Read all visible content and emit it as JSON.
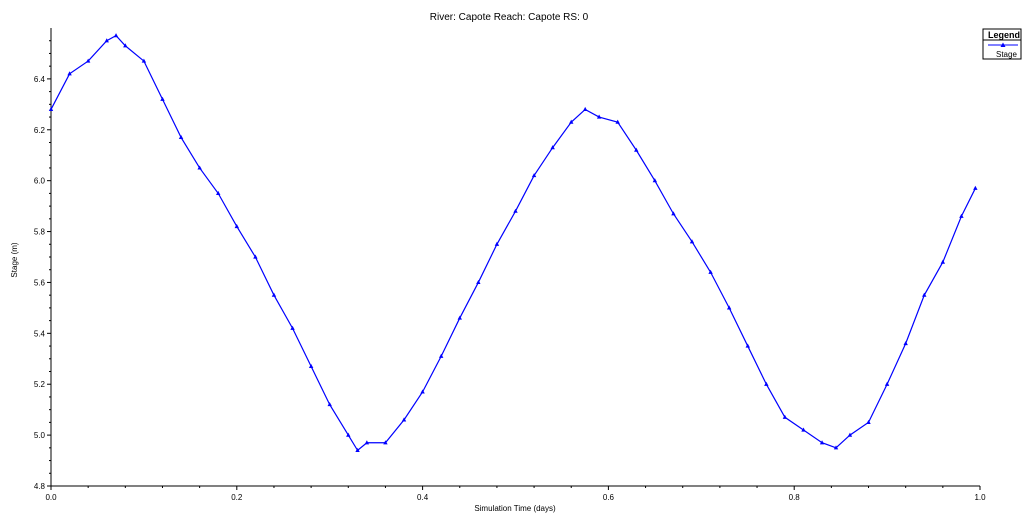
{
  "chart_data": {
    "type": "line",
    "title": "River: Capote  Reach: Capote  RS: 0",
    "xlabel": "Simulation Time (days)",
    "ylabel": "Stage  (m)",
    "xlim": [
      0,
      1.0
    ],
    "ylim": [
      4.8,
      6.6
    ],
    "xticks": [
      0.0,
      0.2,
      0.4,
      0.6,
      0.8,
      1.0
    ],
    "xtick_labels": [
      "0.0",
      "0.2",
      "0.4",
      "0.6",
      "0.8",
      "1.0"
    ],
    "yticks": [
      4.8,
      5.0,
      5.2,
      5.4,
      5.6,
      5.8,
      6.0,
      6.2,
      6.4
    ],
    "ytick_labels": [
      "4.8",
      "5.0",
      "5.2",
      "5.4",
      "5.6",
      "5.8",
      "6.0",
      "6.2",
      "6.4"
    ],
    "grid": false,
    "legend": {
      "title": "Legend",
      "placement": "top-right",
      "entries": [
        "Stage"
      ]
    },
    "series": [
      {
        "name": "Stage",
        "color": "#0000ff",
        "marker": "triangle",
        "x": [
          0.0,
          0.02,
          0.04,
          0.06,
          0.07,
          0.08,
          0.1,
          0.12,
          0.14,
          0.16,
          0.18,
          0.2,
          0.22,
          0.24,
          0.26,
          0.28,
          0.3,
          0.32,
          0.33,
          0.34,
          0.36,
          0.38,
          0.4,
          0.42,
          0.44,
          0.46,
          0.48,
          0.5,
          0.52,
          0.54,
          0.56,
          0.575,
          0.59,
          0.61,
          0.63,
          0.65,
          0.67,
          0.69,
          0.71,
          0.73,
          0.75,
          0.77,
          0.79,
          0.81,
          0.83,
          0.845,
          0.86,
          0.88,
          0.9,
          0.92,
          0.94,
          0.96,
          0.98,
          0.995
        ],
        "y": [
          6.28,
          6.42,
          6.47,
          6.55,
          6.57,
          6.53,
          6.47,
          6.32,
          6.17,
          6.05,
          5.95,
          5.82,
          5.7,
          5.55,
          5.42,
          5.27,
          5.12,
          5.0,
          4.94,
          4.97,
          4.97,
          5.06,
          5.17,
          5.31,
          5.46,
          5.6,
          5.75,
          5.88,
          6.02,
          6.13,
          6.23,
          6.28,
          6.25,
          6.23,
          6.12,
          6.0,
          5.87,
          5.76,
          5.64,
          5.5,
          5.35,
          5.2,
          5.07,
          5.02,
          4.97,
          4.95,
          5.0,
          5.05,
          5.2,
          5.36,
          5.55,
          5.68,
          5.86,
          5.97
        ]
      }
    ]
  }
}
